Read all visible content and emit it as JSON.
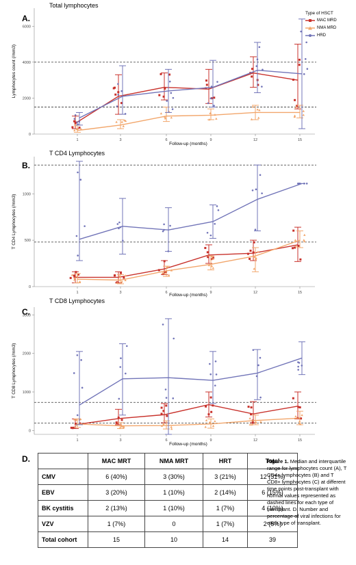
{
  "panels": [
    {
      "letter": "A.",
      "title": "Total lymphocytes",
      "ylabel": "Lymphocytes count (/mm3)",
      "xlabel": "Follow-up (months)"
    },
    {
      "letter": "B.",
      "title": "T CD4 Lymphocytes",
      "ylabel": "T CD4 Lymphocytes (/mm3)",
      "xlabel": "Follow-up (months)"
    },
    {
      "letter": "C.",
      "title": "T CD8 Lymphocytes",
      "ylabel": "T CD8 Lymphocytes (/mm3)",
      "xlabel": "Follow-up (months)"
    }
  ],
  "legend": {
    "title": "Type of HSCT",
    "items": [
      "MAC MRD",
      "NMA MRD",
      "HRD"
    ]
  },
  "colors": {
    "mac": "#c8312b",
    "nma": "#f2a66b",
    "hrd": "#7174b8",
    "ref_line": "#333333"
  },
  "chart_data": [
    {
      "type": "line",
      "title": "Total lymphocytes",
      "xlabel": "Follow-up (months)",
      "ylabel": "Lymphocytes count (/mm3)",
      "x": [
        1,
        3,
        6,
        9,
        12,
        15
      ],
      "ylim": [
        0,
        7000
      ],
      "yticks": [
        0,
        2000,
        4000,
        6000
      ],
      "reference_lines": [
        1500,
        4000
      ],
      "series": [
        {
          "name": "MAC MRD",
          "median": [
            600,
            2100,
            2600,
            2500,
            3400,
            3000
          ],
          "q1": [
            300,
            1100,
            1900,
            1700,
            2600,
            1400
          ],
          "q3": [
            1000,
            3300,
            3400,
            3600,
            4300,
            5000
          ]
        },
        {
          "name": "NMA MRD",
          "median": [
            200,
            500,
            1000,
            1050,
            1200,
            1200
          ],
          "q1": [
            100,
            300,
            700,
            800,
            800,
            900
          ],
          "q3": [
            500,
            800,
            1500,
            1400,
            1600,
            1600
          ]
        },
        {
          "name": "HRD",
          "median": [
            900,
            2100,
            2400,
            2600,
            3550,
            3350
          ],
          "q1": [
            500,
            1100,
            1200,
            1500,
            2300,
            300
          ],
          "q3": [
            1200,
            3800,
            3600,
            4100,
            5100,
            6400
          ]
        }
      ]
    },
    {
      "type": "line",
      "title": "T CD4 Lymphocytes",
      "xlabel": "Follow-up (months)",
      "ylabel": "T CD4 Lymphocytes (/mm3)",
      "x": [
        1,
        3,
        6,
        9,
        12,
        15
      ],
      "ylim": [
        0,
        1400
      ],
      "yticks": [
        0,
        500,
        1000
      ],
      "reference_lines": [
        480,
        1310
      ],
      "series": [
        {
          "name": "MAC MRD",
          "median": [
            100,
            100,
            190,
            340,
            360,
            450
          ],
          "q1": [
            40,
            40,
            130,
            250,
            280,
            270
          ],
          "q3": [
            160,
            160,
            280,
            450,
            500,
            640
          ]
        },
        {
          "name": "NMA MRD",
          "median": [
            80,
            70,
            170,
            240,
            330,
            500
          ],
          "q1": [
            40,
            30,
            110,
            180,
            160,
            420
          ],
          "q3": [
            140,
            130,
            220,
            330,
            420,
            600
          ]
        },
        {
          "name": "HRD",
          "median": [
            510,
            650,
            610,
            700,
            940,
            1110
          ],
          "q1": [
            280,
            350,
            380,
            520,
            600,
            1110
          ],
          "q3": [
            1350,
            950,
            850,
            880,
            1310,
            1110
          ]
        }
      ]
    },
    {
      "type": "line",
      "title": "T CD8 Lymphocytes",
      "xlabel": "Follow-up (months)",
      "ylabel": "T CD8 Lymphocytes (/mm3)",
      "x": [
        1,
        3,
        6,
        9,
        12,
        15
      ],
      "ylim": [
        -100,
        3200
      ],
      "yticks": [
        0,
        1000,
        2000,
        3000
      ],
      "reference_lines": [
        190,
        730
      ],
      "series": [
        {
          "name": "MAC MRD",
          "median": [
            150,
            310,
            410,
            670,
            430,
            630
          ],
          "q1": [
            50,
            150,
            200,
            350,
            200,
            300
          ],
          "q3": [
            300,
            550,
            700,
            1000,
            750,
            1000
          ]
        },
        {
          "name": "NMA MRD",
          "median": [
            170,
            120,
            130,
            170,
            260,
            320
          ],
          "q1": [
            80,
            50,
            40,
            60,
            150,
            150
          ],
          "q3": [
            300,
            200,
            250,
            300,
            400,
            500
          ]
        },
        {
          "name": "HRD",
          "median": [
            660,
            1340,
            1370,
            1300,
            1490,
            1880
          ],
          "q1": [
            150,
            400,
            -100,
            700,
            800,
            1450
          ],
          "q3": [
            2050,
            2250,
            2900,
            2050,
            2100,
            2300
          ]
        }
      ]
    }
  ],
  "table": {
    "letter": "D.",
    "headers": [
      "",
      "MAC MRT",
      "NMA MRT",
      "HRT",
      "Total"
    ],
    "rows": [
      [
        "CMV",
        "6 (40%)",
        "3 (30%)",
        "3 (21%)",
        "12 (31%)"
      ],
      [
        "EBV",
        "3 (20%)",
        "1 (10%)",
        "2 (14%)",
        "6 (15%)"
      ],
      [
        "BK cystitis",
        "2 (13%)",
        "1 (10%)",
        "1 (7%)",
        "4 (10%)"
      ],
      [
        "VZV",
        "1 (7%)",
        "0",
        "1 (7%)",
        "2 (5%)"
      ],
      [
        "Total cohort",
        "15",
        "10",
        "14",
        "39"
      ]
    ]
  },
  "caption": {
    "label": "Figure 1.",
    "text": " Median and interquartile range for lymphocytes count (A), T CD4+ lymphocytes (B) and T CD8+ lymphocytes (C) at different time points post-transplant with normal values represented as dashed lines for each type of transplant. D. Number and percentage of viral infections for each type of transplant."
  }
}
